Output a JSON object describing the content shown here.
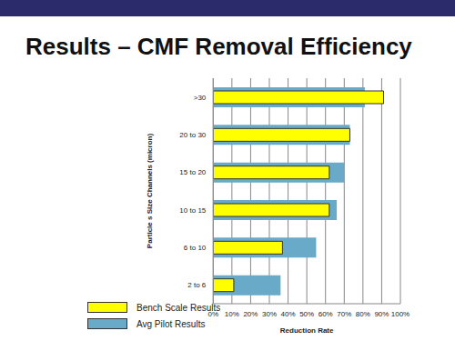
{
  "chart_data": {
    "type": "bar",
    "orientation": "horizontal",
    "title": "Results – CMF Removal Efficiency",
    "x_label": "Reduction Rate",
    "y_label": "Particle s Size  Channels (micron)",
    "categories": [
      ">30",
      "20 to 30",
      "15 to 20",
      "10 to 15",
      "6 to 10",
      "2 to 6"
    ],
    "series": [
      {
        "name": "Bench Scale Results",
        "color": "#ffff00",
        "values": [
          91,
          73,
          62,
          62,
          37,
          11
        ]
      },
      {
        "name": "Avg Pilot Results",
        "color": "#6aaac9",
        "values": [
          81,
          73,
          70,
          66,
          55,
          36
        ]
      }
    ],
    "xlim": [
      0,
      100
    ],
    "xticks": [
      {
        "value": 0,
        "label": "0%"
      },
      {
        "value": 10,
        "label": "10%"
      },
      {
        "value": 20,
        "label": "20%"
      },
      {
        "value": 30,
        "label": "30%"
      },
      {
        "value": 40,
        "label": "40%"
      },
      {
        "value": 50,
        "label": "50%"
      },
      {
        "value": 60,
        "label": "60%"
      },
      {
        "value": 70,
        "label": "70%"
      },
      {
        "value": 80,
        "label": "80%"
      },
      {
        "value": 90,
        "label": "90%"
      },
      {
        "value": 100,
        "label": "100%"
      }
    ],
    "grid": true,
    "legend": "lower left"
  }
}
